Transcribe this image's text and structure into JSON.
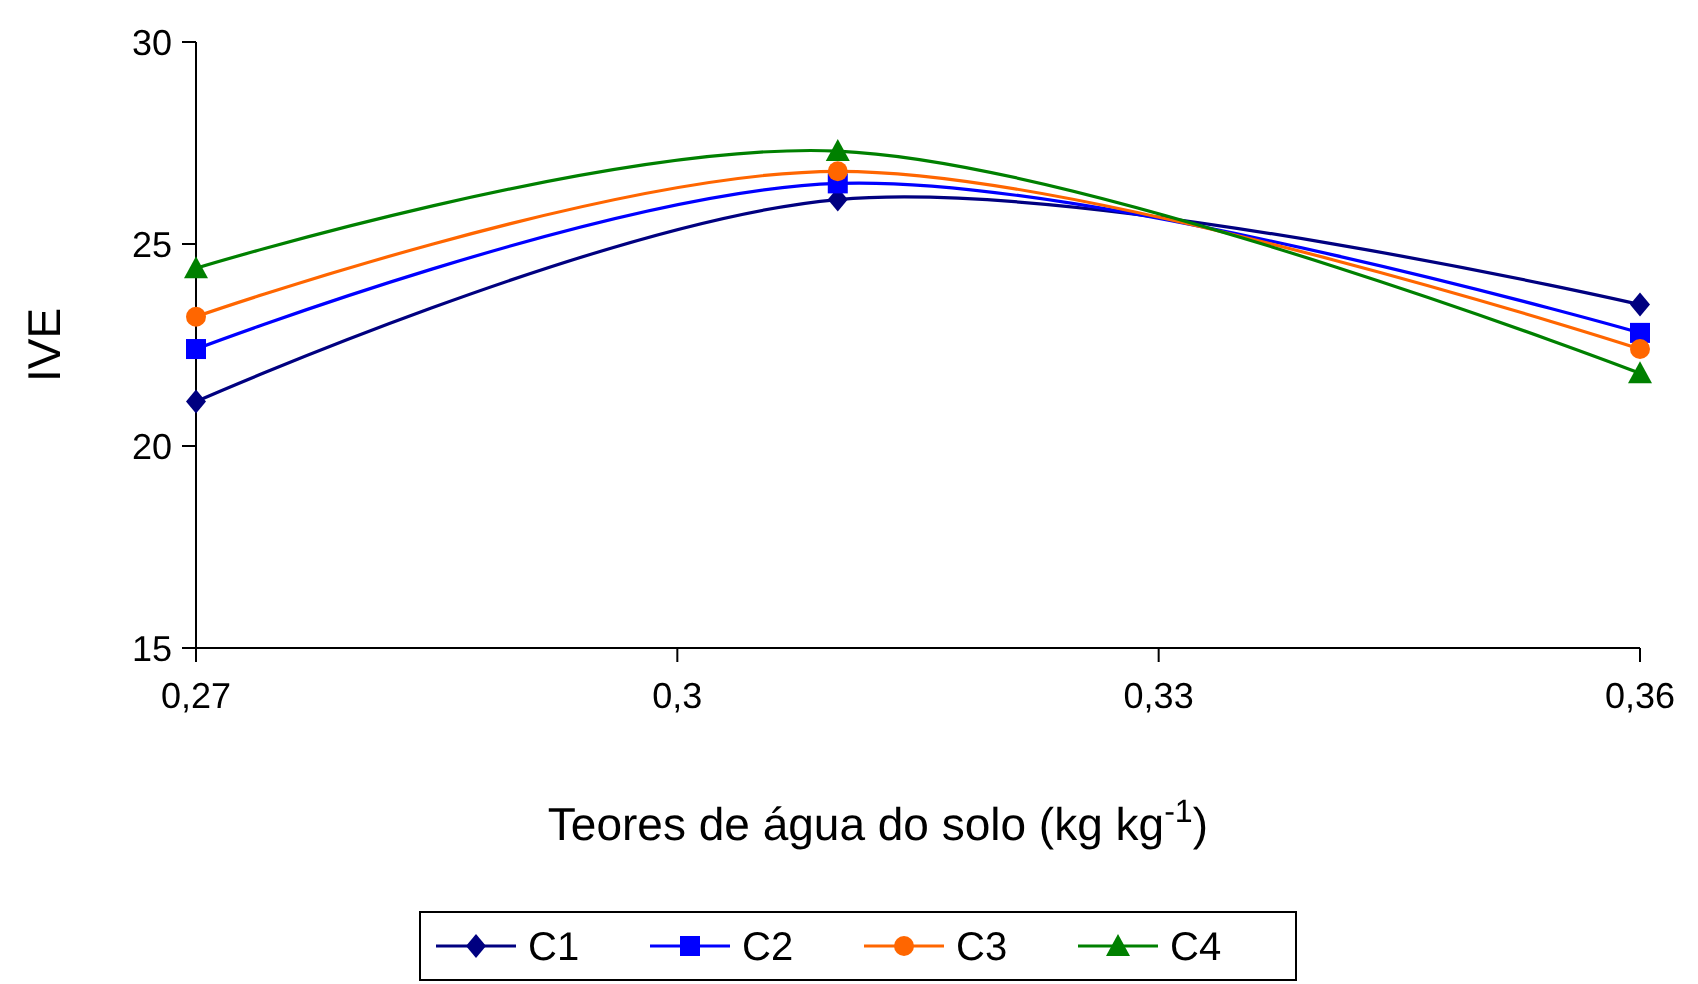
{
  "chart_data": {
    "type": "line",
    "xlabel": "Teores de água do solo (kg kg$^{-1}$)",
    "ylabel": "IVE",
    "x": [
      0.27,
      0.31,
      0.36
    ],
    "series": [
      {
        "name": "C1",
        "color": "#000080",
        "marker": "diamond",
        "values": [
          21.1,
          26.1,
          23.5
        ]
      },
      {
        "name": "C2",
        "color": "#0000ff",
        "marker": "square",
        "values": [
          22.4,
          26.5,
          22.8
        ]
      },
      {
        "name": "C3",
        "color": "#ff6600",
        "marker": "circle",
        "values": [
          23.2,
          26.8,
          22.4
        ]
      },
      {
        "name": "C4",
        "color": "#008000",
        "marker": "triangle",
        "values": [
          24.4,
          27.3,
          21.8
        ]
      }
    ],
    "xlim": [
      0.27,
      0.36
    ],
    "xticks": [
      {
        "value": 0.27,
        "label": "0,27"
      },
      {
        "value": 0.3,
        "label": "0,3"
      },
      {
        "value": 0.33,
        "label": "0,33"
      },
      {
        "value": 0.36,
        "label": "0,36"
      }
    ],
    "ylim": [
      15,
      30
    ],
    "yticks": [
      15,
      20,
      25,
      30
    ],
    "grid": false,
    "legend": "bottom",
    "line_style": "solid"
  }
}
